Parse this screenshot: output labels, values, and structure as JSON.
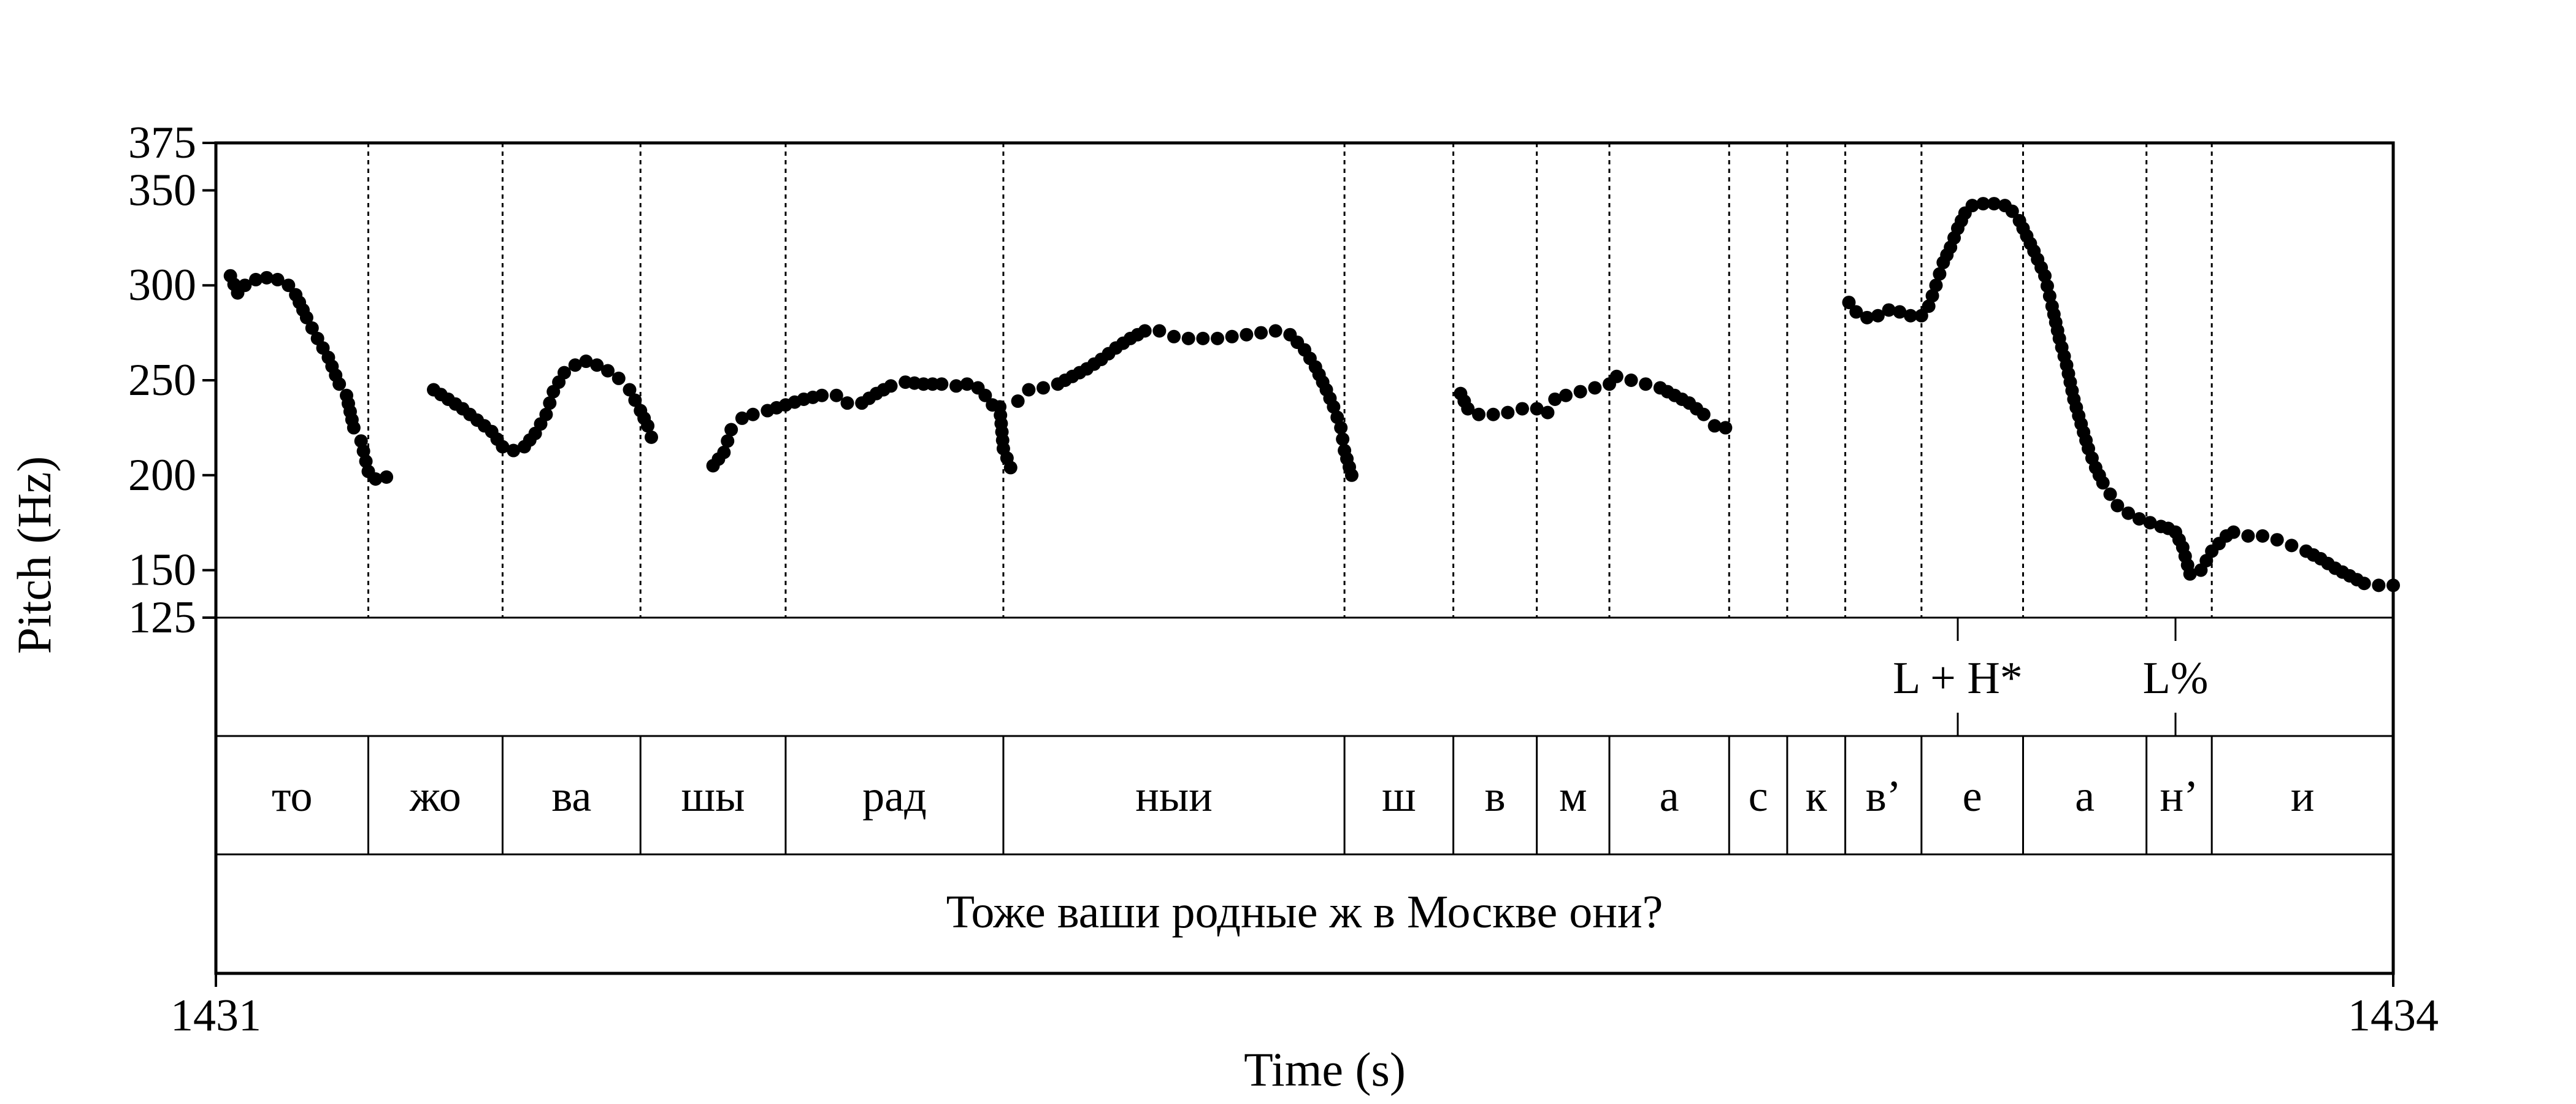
{
  "chart_data": {
    "type": "scatter",
    "xlabel": "Time (s)",
    "ylabel": "Pitch (Hz)",
    "xlim": [
      1431,
      1434
    ],
    "ylim": [
      125,
      375
    ],
    "x_ticks": [
      "1431",
      "1434"
    ],
    "y_ticks": [
      125,
      150,
      200,
      250,
      300,
      350,
      375
    ],
    "tones": [
      {
        "label": "L + H*",
        "time": 1433.4
      },
      {
        "label": "L%",
        "time": 1433.7
      }
    ],
    "syllables": [
      {
        "label": "то",
        "start": 1431.0,
        "end": 1431.21
      },
      {
        "label": "жо",
        "start": 1431.21,
        "end": 1431.395
      },
      {
        "label": "ва",
        "start": 1431.395,
        "end": 1431.585
      },
      {
        "label": "шы",
        "start": 1431.585,
        "end": 1431.785
      },
      {
        "label": "рад",
        "start": 1431.785,
        "end": 1432.085
      },
      {
        "label": "ныи",
        "start": 1432.085,
        "end": 1432.555
      },
      {
        "label": "ш",
        "start": 1432.555,
        "end": 1432.705
      },
      {
        "label": "в",
        "start": 1432.705,
        "end": 1432.82
      },
      {
        "label": "м",
        "start": 1432.82,
        "end": 1432.92
      },
      {
        "label": "а",
        "start": 1432.92,
        "end": 1433.085
      },
      {
        "label": "с",
        "start": 1433.085,
        "end": 1433.165
      },
      {
        "label": "к",
        "start": 1433.165,
        "end": 1433.245
      },
      {
        "label": "в’",
        "start": 1433.245,
        "end": 1433.35
      },
      {
        "label": "е",
        "start": 1433.35,
        "end": 1433.49
      },
      {
        "label": "а",
        "start": 1433.49,
        "end": 1433.66
      },
      {
        "label": "н’",
        "start": 1433.66,
        "end": 1433.75
      },
      {
        "label": "и",
        "start": 1433.75,
        "end": 1434.0
      }
    ],
    "sentence": "Тоже ваши родные ж в Москве они?",
    "series": [
      {
        "segments": [
          [
            [
              1431.02,
              305
            ],
            [
              1431.03,
              296
            ],
            [
              1431.04,
              300
            ],
            [
              1431.055,
              303
            ],
            [
              1431.07,
              304
            ],
            [
              1431.085,
              303
            ],
            [
              1431.1,
              300
            ],
            [
              1431.11,
              295
            ],
            [
              1431.125,
              283
            ],
            [
              1431.14,
              272
            ],
            [
              1431.155,
              262
            ],
            [
              1431.17,
              248
            ],
            [
              1431.18,
              242
            ],
            [
              1431.19,
              225
            ],
            [
              1431.2,
              218
            ],
            [
              1431.21,
              202
            ],
            [
              1431.22,
              198
            ],
            [
              1431.235,
              199
            ]
          ],
          [
            [
              1431.3,
              245
            ],
            [
              1431.32,
              240
            ],
            [
              1431.34,
              235
            ],
            [
              1431.36,
              229
            ],
            [
              1431.38,
              223
            ],
            [
              1431.395,
              215
            ],
            [
              1431.41,
              213
            ],
            [
              1431.425,
              215
            ],
            [
              1431.44,
              222
            ],
            [
              1431.455,
              232
            ],
            [
              1431.465,
              244
            ],
            [
              1431.48,
              254
            ],
            [
              1431.495,
              258
            ],
            [
              1431.51,
              260
            ],
            [
              1431.525,
              258
            ],
            [
              1431.54,
              255
            ],
            [
              1431.555,
              251
            ],
            [
              1431.57,
              245
            ],
            [
              1431.585,
              234
            ],
            [
              1431.595,
              226
            ],
            [
              1431.6,
              220
            ]
          ],
          [
            [
              1431.685,
              205
            ],
            [
              1431.7,
              212
            ],
            [
              1431.71,
              224
            ],
            [
              1431.725,
              230
            ],
            [
              1431.74,
              232
            ],
            [
              1431.76,
              234
            ],
            [
              1431.785,
              237
            ],
            [
              1431.81,
              240
            ],
            [
              1431.835,
              242
            ],
            [
              1431.855,
              242
            ],
            [
              1431.87,
              238
            ],
            [
              1431.89,
              238
            ],
            [
              1431.91,
              243
            ],
            [
              1431.93,
              247
            ],
            [
              1431.95,
              249
            ],
            [
              1431.975,
              248
            ],
            [
              1432.0,
              248
            ],
            [
              1432.02,
              247
            ],
            [
              1432.035,
              248
            ],
            [
              1432.05,
              246
            ],
            [
              1432.06,
              242
            ],
            [
              1432.07,
              237
            ],
            [
              1432.08,
              236
            ],
            [
              1432.085,
              214
            ],
            [
              1432.095,
              204
            ]
          ],
          [
            [
              1432.105,
              239
            ],
            [
              1432.12,
              245
            ],
            [
              1432.14,
              246
            ],
            [
              1432.16,
              248
            ],
            [
              1432.18,
              252
            ],
            [
              1432.2,
              256
            ],
            [
              1432.22,
              261
            ],
            [
              1432.24,
              267
            ],
            [
              1432.26,
              272
            ],
            [
              1432.28,
              276
            ],
            [
              1432.3,
              276
            ],
            [
              1432.32,
              273
            ],
            [
              1432.34,
              272
            ],
            [
              1432.36,
              272
            ],
            [
              1432.38,
              272
            ],
            [
              1432.4,
              273
            ],
            [
              1432.42,
              274
            ],
            [
              1432.44,
              275
            ],
            [
              1432.46,
              276
            ],
            [
              1432.48,
              274
            ],
            [
              1432.5,
              266
            ],
            [
              1432.515,
              257
            ],
            [
              1432.53,
              245
            ],
            [
              1432.54,
              236
            ],
            [
              1432.55,
              225
            ],
            [
              1432.555,
              213
            ],
            [
              1432.565,
              200
            ]
          ],
          [
            [
              1432.715,
              243
            ],
            [
              1432.725,
              235
            ],
            [
              1432.74,
              232
            ],
            [
              1432.76,
              232
            ],
            [
              1432.78,
              233
            ],
            [
              1432.8,
              235
            ],
            [
              1432.82,
              235
            ],
            [
              1432.835,
              233
            ],
            [
              1432.845,
              240
            ],
            [
              1432.86,
              242
            ],
            [
              1432.88,
              244
            ],
            [
              1432.9,
              246
            ],
            [
              1432.92,
              248
            ],
            [
              1432.93,
              252
            ],
            [
              1432.95,
              250
            ],
            [
              1432.97,
              248
            ],
            [
              1432.99,
              246
            ],
            [
              1433.01,
              242
            ],
            [
              1433.03,
              238
            ],
            [
              1433.05,
              232
            ],
            [
              1433.065,
              226
            ],
            [
              1433.08,
              225
            ]
          ],
          [
            [
              1433.25,
              291
            ],
            [
              1433.26,
              286
            ],
            [
              1433.275,
              283
            ],
            [
              1433.29,
              284
            ],
            [
              1433.305,
              287
            ],
            [
              1433.32,
              286
            ],
            [
              1433.335,
              284
            ],
            [
              1433.35,
              284
            ],
            [
              1433.36,
              289
            ],
            [
              1433.37,
              300
            ],
            [
              1433.38,
              312
            ],
            [
              1433.39,
              320
            ],
            [
              1433.4,
              330
            ],
            [
              1433.41,
              338
            ],
            [
              1433.42,
              342
            ],
            [
              1433.435,
              343
            ],
            [
              1433.45,
              343
            ],
            [
              1433.465,
              342
            ],
            [
              1433.475,
              339
            ],
            [
              1433.485,
              334
            ],
            [
              1433.495,
              326
            ],
            [
              1433.505,
              318
            ],
            [
              1433.52,
              305
            ],
            [
              1433.53,
              289
            ],
            [
              1433.54,
              272
            ],
            [
              1433.55,
              258
            ],
            [
              1433.56,
              240
            ],
            [
              1433.57,
              227
            ],
            [
              1433.58,
              214
            ],
            [
              1433.59,
              204
            ],
            [
              1433.6,
              196
            ],
            [
              1433.61,
              190
            ],
            [
              1433.62,
              184
            ],
            [
              1433.635,
              180
            ],
            [
              1433.65,
              177
            ],
            [
              1433.665,
              175
            ],
            [
              1433.68,
              173
            ],
            [
              1433.69,
              172
            ],
            [
              1433.7,
              170
            ],
            [
              1433.71,
              162
            ],
            [
              1433.72,
              148
            ],
            [
              1433.735,
              150
            ],
            [
              1433.75,
              160
            ],
            [
              1433.76,
              164
            ],
            [
              1433.77,
              168
            ],
            [
              1433.78,
              170
            ],
            [
              1433.8,
              168
            ],
            [
              1433.82,
              168
            ],
            [
              1433.84,
              166
            ],
            [
              1433.86,
              163
            ],
            [
              1433.88,
              160
            ],
            [
              1433.9,
              156
            ],
            [
              1433.92,
              151
            ],
            [
              1433.94,
              147
            ],
            [
              1433.96,
              143
            ],
            [
              1433.98,
              142
            ],
            [
              1434.0,
              142
            ]
          ]
        ]
      }
    ]
  }
}
